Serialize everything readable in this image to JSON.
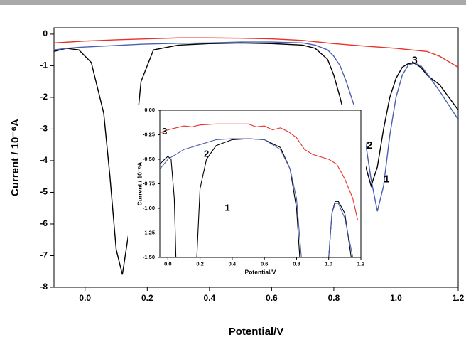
{
  "chart_data": [
    {
      "type": "line",
      "x_label": "Potential/V",
      "y_label": "Current / 10⁻⁶A",
      "xlim": [
        -0.1,
        1.2
      ],
      "ylim": [
        -8,
        0.2
      ],
      "xticks": [
        {
          "value": 0,
          "label": "0.0"
        },
        {
          "value": 0.2,
          "label": "0.2"
        },
        {
          "value": 0.4,
          "label": "0.4"
        },
        {
          "value": 0.6,
          "label": "0.6"
        },
        {
          "value": 0.8,
          "label": "0.8"
        },
        {
          "value": 1,
          "label": "1.0"
        },
        {
          "value": 1.2,
          "label": "1.2"
        }
      ],
      "yticks": [
        0,
        -1,
        -2,
        -3,
        -4,
        -5,
        -6,
        -7,
        -8
      ],
      "series": [
        {
          "color": "#000000",
          "x": [
            -0.1,
            -0.06,
            -0.02,
            0.02,
            0.06,
            0.08,
            0.1,
            0.12,
            0.14,
            0.16,
            0.18,
            0.22,
            0.3,
            0.4,
            0.5,
            0.6,
            0.7,
            0.74,
            0.78,
            0.8,
            0.82,
            0.84,
            0.86,
            0.88,
            0.9,
            0.92,
            0.94,
            0.96,
            0.98,
            1.0,
            1.02,
            1.04,
            1.06,
            1.08,
            1.1,
            1.14,
            1.2
          ],
          "values": [
            -0.55,
            -0.45,
            -0.5,
            -0.9,
            -2.5,
            -4.5,
            -6.8,
            -7.6,
            -6.3,
            -3.5,
            -1.5,
            -0.5,
            -0.35,
            -0.3,
            -0.28,
            -0.3,
            -0.35,
            -0.45,
            -0.8,
            -1.3,
            -2.0,
            -2.8,
            -3.4,
            -3.7,
            -4.1,
            -4.8,
            -4.2,
            -3.0,
            -2.0,
            -1.4,
            -1.05,
            -0.93,
            -0.93,
            -1.05,
            -1.3,
            -1.6,
            -2.4
          ]
        },
        {
          "color": "#4a5fb0",
          "x": [
            -0.1,
            -0.06,
            -0.02,
            0.02,
            0.06,
            0.1,
            0.14,
            0.18,
            0.22,
            0.3,
            0.4,
            0.5,
            0.6,
            0.7,
            0.74,
            0.78,
            0.8,
            0.82,
            0.84,
            0.86,
            0.88,
            0.9,
            0.92,
            0.94,
            0.96,
            0.98,
            1.0,
            1.02,
            1.04,
            1.06,
            1.08,
            1.1,
            1.14,
            1.2
          ],
          "values": [
            -0.5,
            -0.45,
            -0.42,
            -0.4,
            -0.38,
            -0.36,
            -0.34,
            -0.32,
            -0.31,
            -0.29,
            -0.28,
            -0.25,
            -0.25,
            -0.28,
            -0.35,
            -0.5,
            -0.7,
            -1.0,
            -1.5,
            -2.1,
            -2.7,
            -3.3,
            -4.6,
            -5.6,
            -4.8,
            -3.2,
            -2.0,
            -1.3,
            -0.97,
            -0.92,
            -1.0,
            -1.25,
            -1.8,
            -2.7
          ]
        },
        {
          "color": "#e8312a",
          "x": [
            -0.1,
            0.0,
            0.1,
            0.2,
            0.3,
            0.4,
            0.5,
            0.6,
            0.7,
            0.8,
            0.9,
            1.0,
            1.1,
            1.14,
            1.2
          ],
          "values": [
            -0.28,
            -0.22,
            -0.18,
            -0.15,
            -0.12,
            -0.12,
            -0.13,
            -0.15,
            -0.2,
            -0.3,
            -0.38,
            -0.45,
            -0.55,
            -0.7,
            -1.05
          ]
        }
      ],
      "annotations": [
        {
          "text": "3",
          "x": 1.06,
          "y": -0.85
        },
        {
          "text": "2",
          "x": 0.915,
          "y": -3.53
        },
        {
          "text": "1",
          "x": 0.97,
          "y": -4.6
        }
      ]
    },
    {
      "type": "line",
      "x_label": "Potential/V",
      "y_label": "Current / 10⁻⁶A",
      "xlim": [
        -0.05,
        1.2
      ],
      "ylim": [
        -1.5,
        0
      ],
      "xticks": [
        {
          "value": 0,
          "label": "0.0"
        },
        {
          "value": 0.2,
          "label": "0.2"
        },
        {
          "value": 0.4,
          "label": "0.4"
        },
        {
          "value": 0.6,
          "label": "0.6"
        },
        {
          "value": 0.8,
          "label": "0.8"
        },
        {
          "value": 1,
          "label": "1.0"
        },
        {
          "value": 1.2,
          "label": "1.2"
        }
      ],
      "yticks": [
        {
          "value": 0,
          "label": "0.00"
        },
        {
          "value": -0.25,
          "label": "-0.25"
        },
        {
          "value": -0.5,
          "label": "-0.50"
        },
        {
          "value": -0.75,
          "label": "-0.75"
        },
        {
          "value": -1,
          "label": "-1.00"
        },
        {
          "value": -1.25,
          "label": "-1.25"
        },
        {
          "value": -1.5,
          "label": "-1.50"
        }
      ],
      "series": [
        {
          "color": "#000000",
          "x": [
            -0.05,
            -0.02,
            0.0,
            0.02,
            0.04,
            0.05,
            null,
            0.18,
            0.2,
            0.24,
            0.3,
            0.4,
            0.5,
            0.6,
            0.7,
            0.76,
            0.8,
            0.82,
            null,
            1.0,
            1.02,
            1.04,
            1.06,
            1.1,
            1.14
          ],
          "values": [
            -0.55,
            -0.5,
            -0.47,
            -0.5,
            -0.9,
            -1.5,
            null,
            -1.5,
            -0.8,
            -0.5,
            -0.36,
            -0.3,
            -0.29,
            -0.3,
            -0.38,
            -0.6,
            -1.0,
            -1.5,
            null,
            -1.5,
            -1.05,
            -0.93,
            -0.93,
            -1.05,
            -1.5
          ]
        },
        {
          "color": "#4a5fb0",
          "x": [
            -0.05,
            0.0,
            0.1,
            0.2,
            0.3,
            0.4,
            0.5,
            0.6,
            0.7,
            0.76,
            0.8,
            0.83,
            null,
            1.0,
            1.02,
            1.04,
            1.06,
            1.1,
            1.15
          ],
          "values": [
            -0.6,
            -0.5,
            -0.4,
            -0.35,
            -0.3,
            -0.29,
            -0.29,
            -0.3,
            -0.4,
            -0.6,
            -0.9,
            -1.5,
            null,
            -1.5,
            -1.05,
            -0.95,
            -0.95,
            -1.1,
            -1.5
          ]
        },
        {
          "color": "#e8312a",
          "x": [
            -0.05,
            0.0,
            0.05,
            0.1,
            0.15,
            0.2,
            0.3,
            0.4,
            0.5,
            0.55,
            0.6,
            0.65,
            0.7,
            0.75,
            0.8,
            0.85,
            0.9,
            1.0,
            1.05,
            1.1,
            1.15,
            1.18
          ],
          "values": [
            -0.23,
            -0.2,
            -0.18,
            -0.16,
            -0.17,
            -0.15,
            -0.14,
            -0.14,
            -0.14,
            -0.17,
            -0.16,
            -0.2,
            -0.18,
            -0.22,
            -0.28,
            -0.4,
            -0.45,
            -0.5,
            -0.55,
            -0.7,
            -0.9,
            -1.12
          ]
        }
      ],
      "annotations": [
        {
          "text": "3",
          "x": -0.02,
          "y": -0.22
        },
        {
          "text": "2",
          "x": 0.24,
          "y": -0.45
        },
        {
          "text": "1",
          "x": 0.37,
          "y": -1.0
        }
      ]
    }
  ]
}
